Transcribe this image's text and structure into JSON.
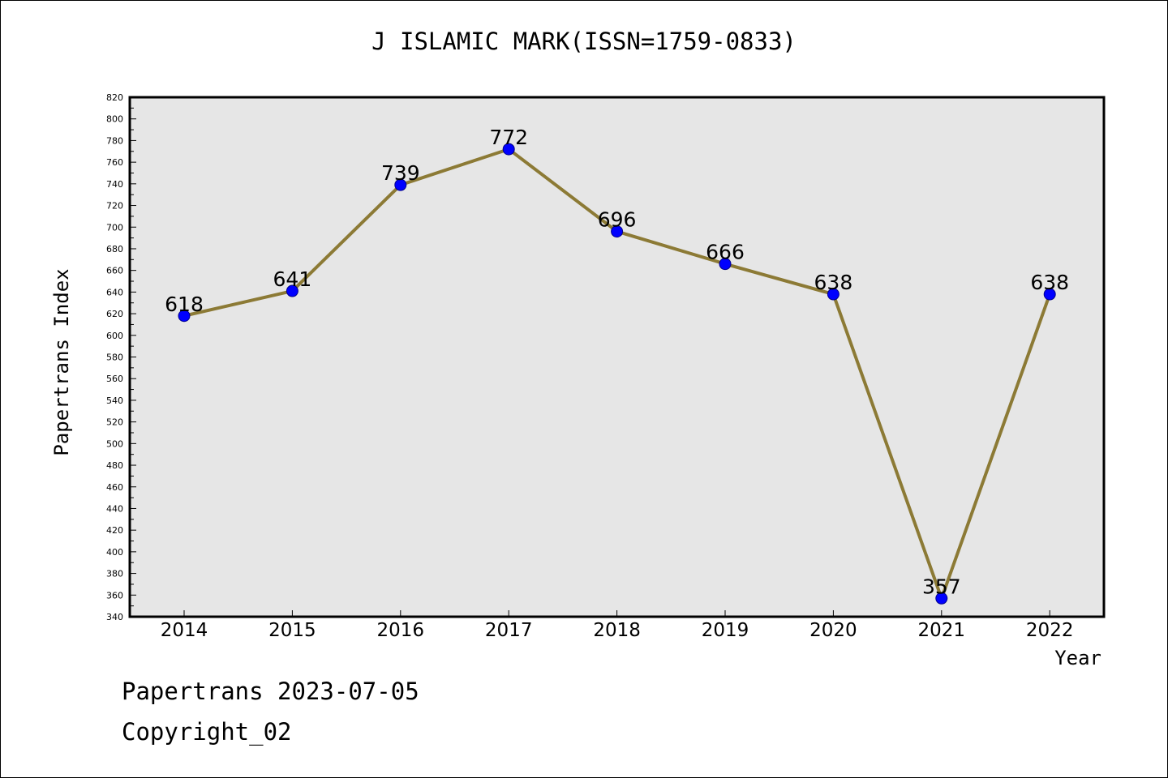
{
  "title": "J ISLAMIC MARK(ISSN=1759-0833)",
  "footer": {
    "line1": "Papertrans 2023-07-05",
    "line2": "Copyright_02"
  },
  "colors": {
    "line": "#8c7a35",
    "marker": "#0000ff",
    "plot_bg": "#e6e6e6"
  },
  "chart_data": {
    "type": "line",
    "title": "J ISLAMIC MARK(ISSN=1759-0833)",
    "xlabel": "Year",
    "ylabel": "Papertrans Index",
    "x": [
      "2014",
      "2015",
      "2016",
      "2017",
      "2018",
      "2019",
      "2020",
      "2021",
      "2022"
    ],
    "values": [
      618,
      641,
      739,
      772,
      696,
      666,
      638,
      357,
      638
    ],
    "ylim": [
      340,
      820
    ],
    "y_ticks": [
      340,
      360,
      380,
      400,
      420,
      440,
      460,
      480,
      500,
      520,
      540,
      560,
      580,
      600,
      620,
      640,
      660,
      680,
      700,
      720,
      740,
      760,
      780,
      800,
      820
    ],
    "grid": false,
    "legend": "none"
  }
}
